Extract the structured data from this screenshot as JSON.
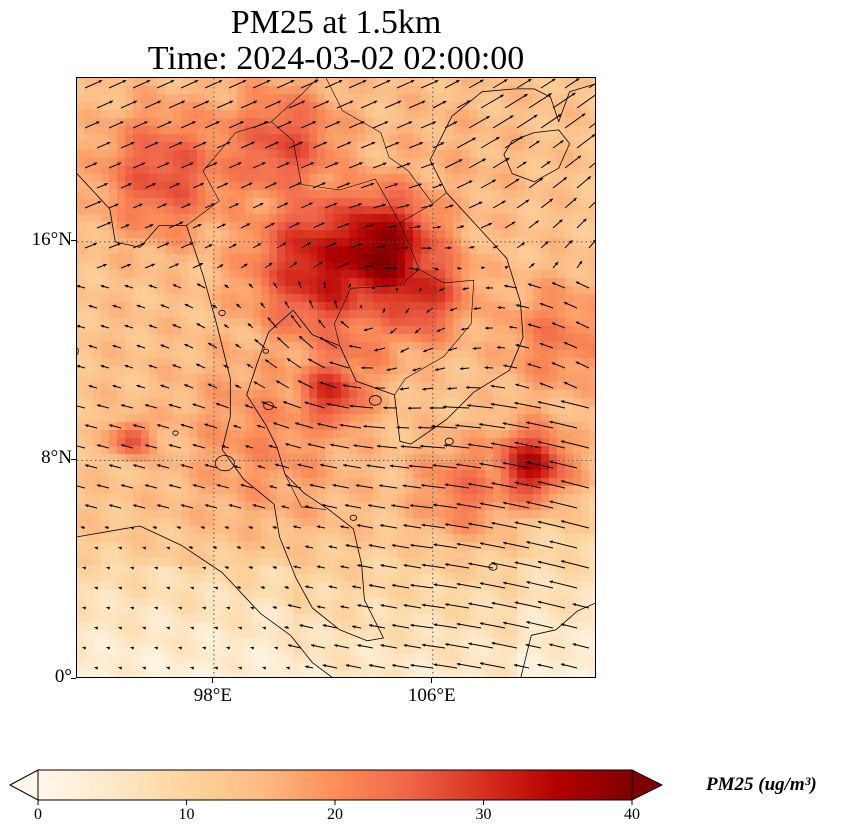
{
  "title": {
    "line1": "PM25 at 1.5km",
    "line2": "Time: 2024-03-02 02:00:00"
  },
  "map": {
    "lon_range": [
      93,
      112
    ],
    "lat_range": [
      0,
      22
    ],
    "gridlines": "dotted",
    "lat_ticks": [
      {
        "value": 0,
        "label": "0°"
      },
      {
        "value": 8,
        "label": "8°N"
      },
      {
        "value": 16,
        "label": "16°N"
      }
    ],
    "lon_ticks": [
      {
        "value": 98,
        "label": "98°E"
      },
      {
        "value": 106,
        "label": "106°E"
      }
    ],
    "field": "PM25",
    "hotspots": [
      {
        "lon": 104.0,
        "lat": 15.6,
        "pm": 40,
        "spread": 1.6
      },
      {
        "lon": 102.2,
        "lat": 15.2,
        "pm": 34,
        "spread": 2.0
      },
      {
        "lon": 105.3,
        "lat": 14.3,
        "pm": 32,
        "spread": 1.4
      },
      {
        "lon": 100.5,
        "lat": 19.5,
        "pm": 27,
        "spread": 1.6
      },
      {
        "lon": 96.2,
        "lat": 18.5,
        "pm": 27,
        "spread": 1.7
      },
      {
        "lon": 98.5,
        "lat": 19.0,
        "pm": 22,
        "spread": 1.8
      },
      {
        "lon": 102.3,
        "lat": 10.5,
        "pm": 30,
        "spread": 1.0
      },
      {
        "lon": 102.8,
        "lat": 12.5,
        "pm": 23,
        "spread": 1.6
      },
      {
        "lon": 109.6,
        "lat": 7.8,
        "pm": 34,
        "spread": 1.0
      },
      {
        "lon": 107.2,
        "lat": 7.0,
        "pm": 23,
        "spread": 1.3
      },
      {
        "lon": 95.0,
        "lat": 8.8,
        "pm": 28,
        "spread": 0.5
      },
      {
        "lon": 100.0,
        "lat": 9.0,
        "pm": 20,
        "spread": 2.4
      },
      {
        "lon": 97.0,
        "lat": 12.5,
        "pm": 14,
        "spread": 3.5
      },
      {
        "lon": 110.5,
        "lat": 12.5,
        "pm": 22,
        "spread": 1.5
      },
      {
        "lon": 106.0,
        "lat": 18.5,
        "pm": 16,
        "spread": 2.5
      }
    ]
  },
  "colorbar": {
    "label": "PM25 (ug/m³)",
    "min": 0,
    "max": 40,
    "extend": "both",
    "colormap": "OrRd",
    "stops": [
      "#fff7ec",
      "#fee8c8",
      "#fdd49e",
      "#fdbb84",
      "#fc8d59",
      "#ef6548",
      "#d7301f",
      "#b30000",
      "#7f0000"
    ],
    "ticks": [
      {
        "value": 0,
        "label": "0"
      },
      {
        "value": 10,
        "label": "10"
      },
      {
        "value": 20,
        "label": "20"
      },
      {
        "value": 30,
        "label": "30"
      },
      {
        "value": 40,
        "label": "40"
      }
    ]
  }
}
